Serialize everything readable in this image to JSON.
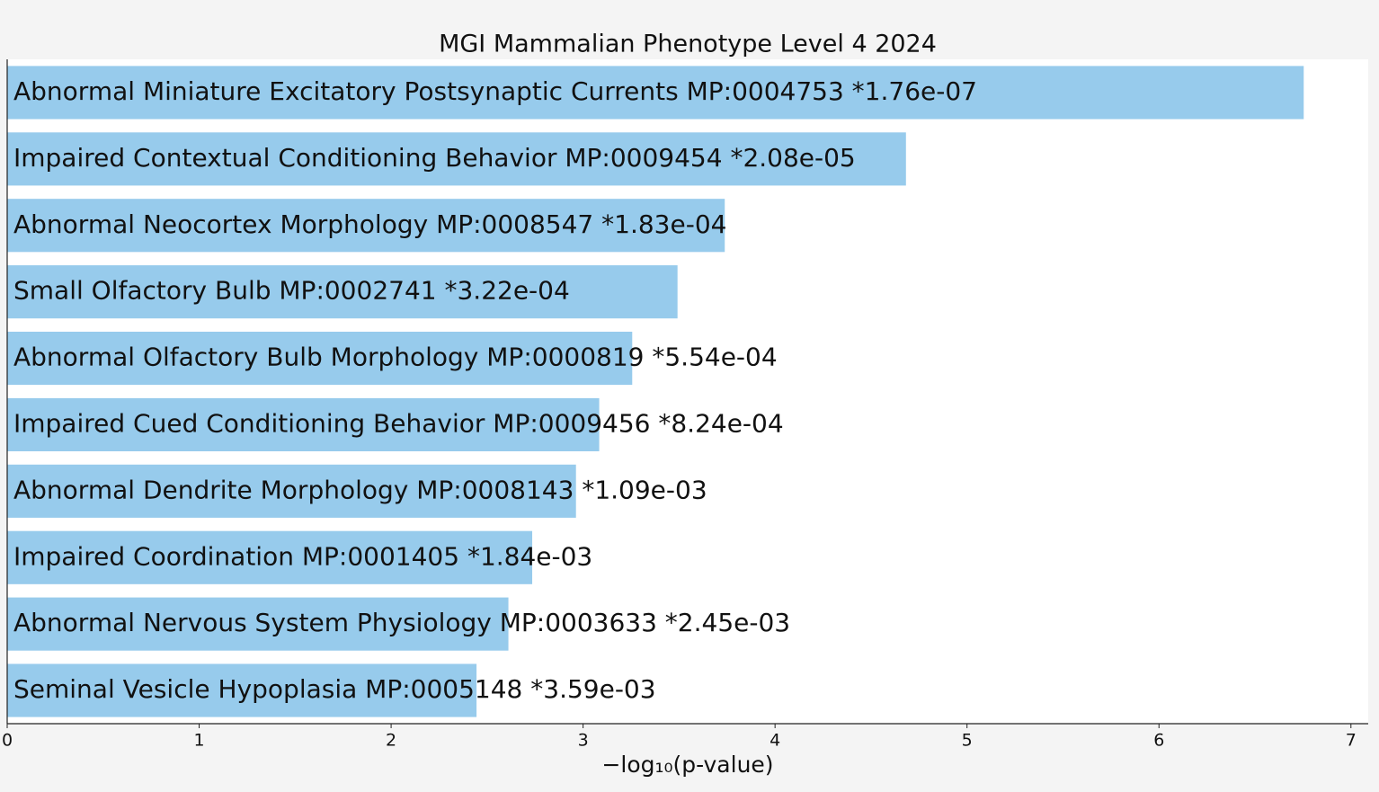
{
  "chart_data": {
    "type": "barh",
    "title": "MGI Mammalian Phenotype Level 4 2024",
    "categories": [
      "Abnormal Miniature Excitatory Postsynaptic Currents MP:0004753  *1.76e-07",
      "Impaired Contextual Conditioning Behavior MP:0009454  *2.08e-05",
      "Abnormal Neocortex Morphology MP:0008547  *1.83e-04",
      "Small Olfactory Bulb MP:0002741  *3.22e-04",
      "Abnormal Olfactory Bulb Morphology MP:0000819  *5.54e-04",
      "Impaired Cued Conditioning Behavior MP:0009456  *8.24e-04",
      "Abnormal Dendrite Morphology MP:0008143  *1.09e-03",
      "Impaired Coordination MP:0001405  *1.84e-03",
      "Abnormal Nervous System Physiology MP:0003633  *2.45e-03",
      "Seminal Vesicle Hypoplasia MP:0005148  *3.59e-03"
    ],
    "values": [
      6.754,
      4.682,
      3.738,
      3.492,
      3.256,
      3.084,
      2.963,
      2.735,
      2.611,
      2.445
    ],
    "color": "#97cbec",
    "xlabel": "−log₁₀(p-value)",
    "xlim": [
      0,
      7.09
    ],
    "xticks": [
      0,
      1,
      2,
      3,
      4,
      5,
      6,
      7
    ]
  }
}
